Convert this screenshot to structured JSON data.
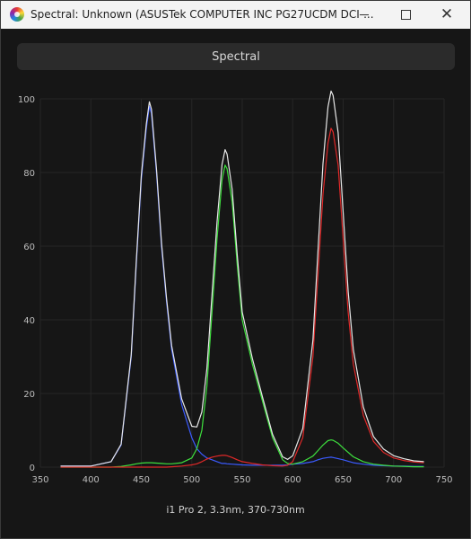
{
  "window": {
    "title": "Spectral: Unknown (ASUSTek COMPUTER INC PG27UCDM DCI-...",
    "minimize_label": "",
    "maximize_label": "",
    "close_label": "✕"
  },
  "tab": {
    "label": "Spectral"
  },
  "footer": {
    "instrument": "i1 Pro 2, 3.3nm, 370-730nm"
  },
  "chart_data": {
    "type": "line",
    "title": "",
    "xlabel": "",
    "ylabel": "",
    "xlim": [
      350,
      750
    ],
    "ylim": [
      0,
      100
    ],
    "x_ticks": [
      350,
      400,
      450,
      500,
      550,
      600,
      650,
      700,
      750
    ],
    "y_ticks": [
      0,
      20,
      40,
      60,
      80,
      100
    ],
    "grid": true,
    "x": [
      370,
      400,
      420,
      430,
      440,
      445,
      450,
      455,
      458,
      460,
      465,
      470,
      475,
      480,
      490,
      500,
      505,
      510,
      515,
      520,
      525,
      530,
      533,
      535,
      540,
      545,
      550,
      560,
      570,
      580,
      590,
      595,
      600,
      610,
      620,
      625,
      630,
      635,
      638,
      640,
      645,
      650,
      655,
      660,
      670,
      680,
      690,
      700,
      710,
      720,
      730
    ],
    "series": [
      {
        "color": "#3b5bff",
        "values": [
          0.3,
          0.3,
          1.5,
          6,
          30,
          55,
          78,
          92,
          98,
          96,
          80,
          60,
          45,
          32,
          17,
          8,
          5,
          3.5,
          2.5,
          2,
          1.5,
          1,
          1,
          0.9,
          0.8,
          0.7,
          0.6,
          0.5,
          0.5,
          0.5,
          0.5,
          0.6,
          0.8,
          1,
          1.5,
          2,
          2.4,
          2.6,
          2.7,
          2.6,
          2.3,
          2,
          1.6,
          1.2,
          0.8,
          0.5,
          0.4,
          0.3,
          0.3,
          0.2,
          0.2
        ]
      },
      {
        "color": "#3ee03e",
        "values": [
          0,
          0,
          0,
          0.2,
          0.6,
          0.9,
          1.1,
          1.2,
          1.2,
          1.2,
          1.1,
          1,
          0.9,
          0.9,
          1.2,
          2.5,
          5,
          10,
          22,
          42,
          62,
          78,
          82,
          81,
          72,
          55,
          40,
          28,
          18,
          8,
          2,
          1,
          0.8,
          1.5,
          3,
          4.5,
          6,
          7.2,
          7.4,
          7.3,
          6.5,
          5.2,
          4,
          2.8,
          1.5,
          0.8,
          0.5,
          0.3,
          0.2,
          0.1,
          0.1
        ]
      },
      {
        "color": "#e02828",
        "values": [
          0,
          0,
          0,
          0,
          0,
          0,
          0,
          0,
          0,
          0,
          0,
          0,
          0,
          0.1,
          0.3,
          0.6,
          0.9,
          1.5,
          2.2,
          2.7,
          3,
          3.2,
          3.2,
          3.1,
          2.6,
          2,
          1.5,
          1,
          0.6,
          0.4,
          0.3,
          0.5,
          1.5,
          8,
          30,
          52,
          74,
          88,
          92,
          91,
          82,
          62,
          42,
          28,
          14,
          7,
          4,
          2.5,
          1.8,
          1.4,
          1.2
        ]
      },
      {
        "color": "#e8e8e8",
        "values": [
          0.3,
          0.3,
          1.5,
          6.2,
          30.6,
          55.9,
          79.1,
          93.2,
          99.2,
          97.2,
          81.1,
          61,
          45.9,
          33,
          18.5,
          11.1,
          10.9,
          15,
          26.7,
          46.7,
          66.5,
          82.2,
          86.2,
          85,
          75.4,
          57.7,
          42.1,
          29.5,
          19.1,
          8.9,
          2.8,
          2.1,
          3.1,
          10.5,
          34.5,
          58.5,
          82.4,
          97.8,
          102.1,
          100.9,
          90.8,
          69.2,
          47.6,
          32,
          16.3,
          8.3,
          4.9,
          3.1,
          2.3,
          1.7,
          1.5
        ]
      }
    ]
  }
}
